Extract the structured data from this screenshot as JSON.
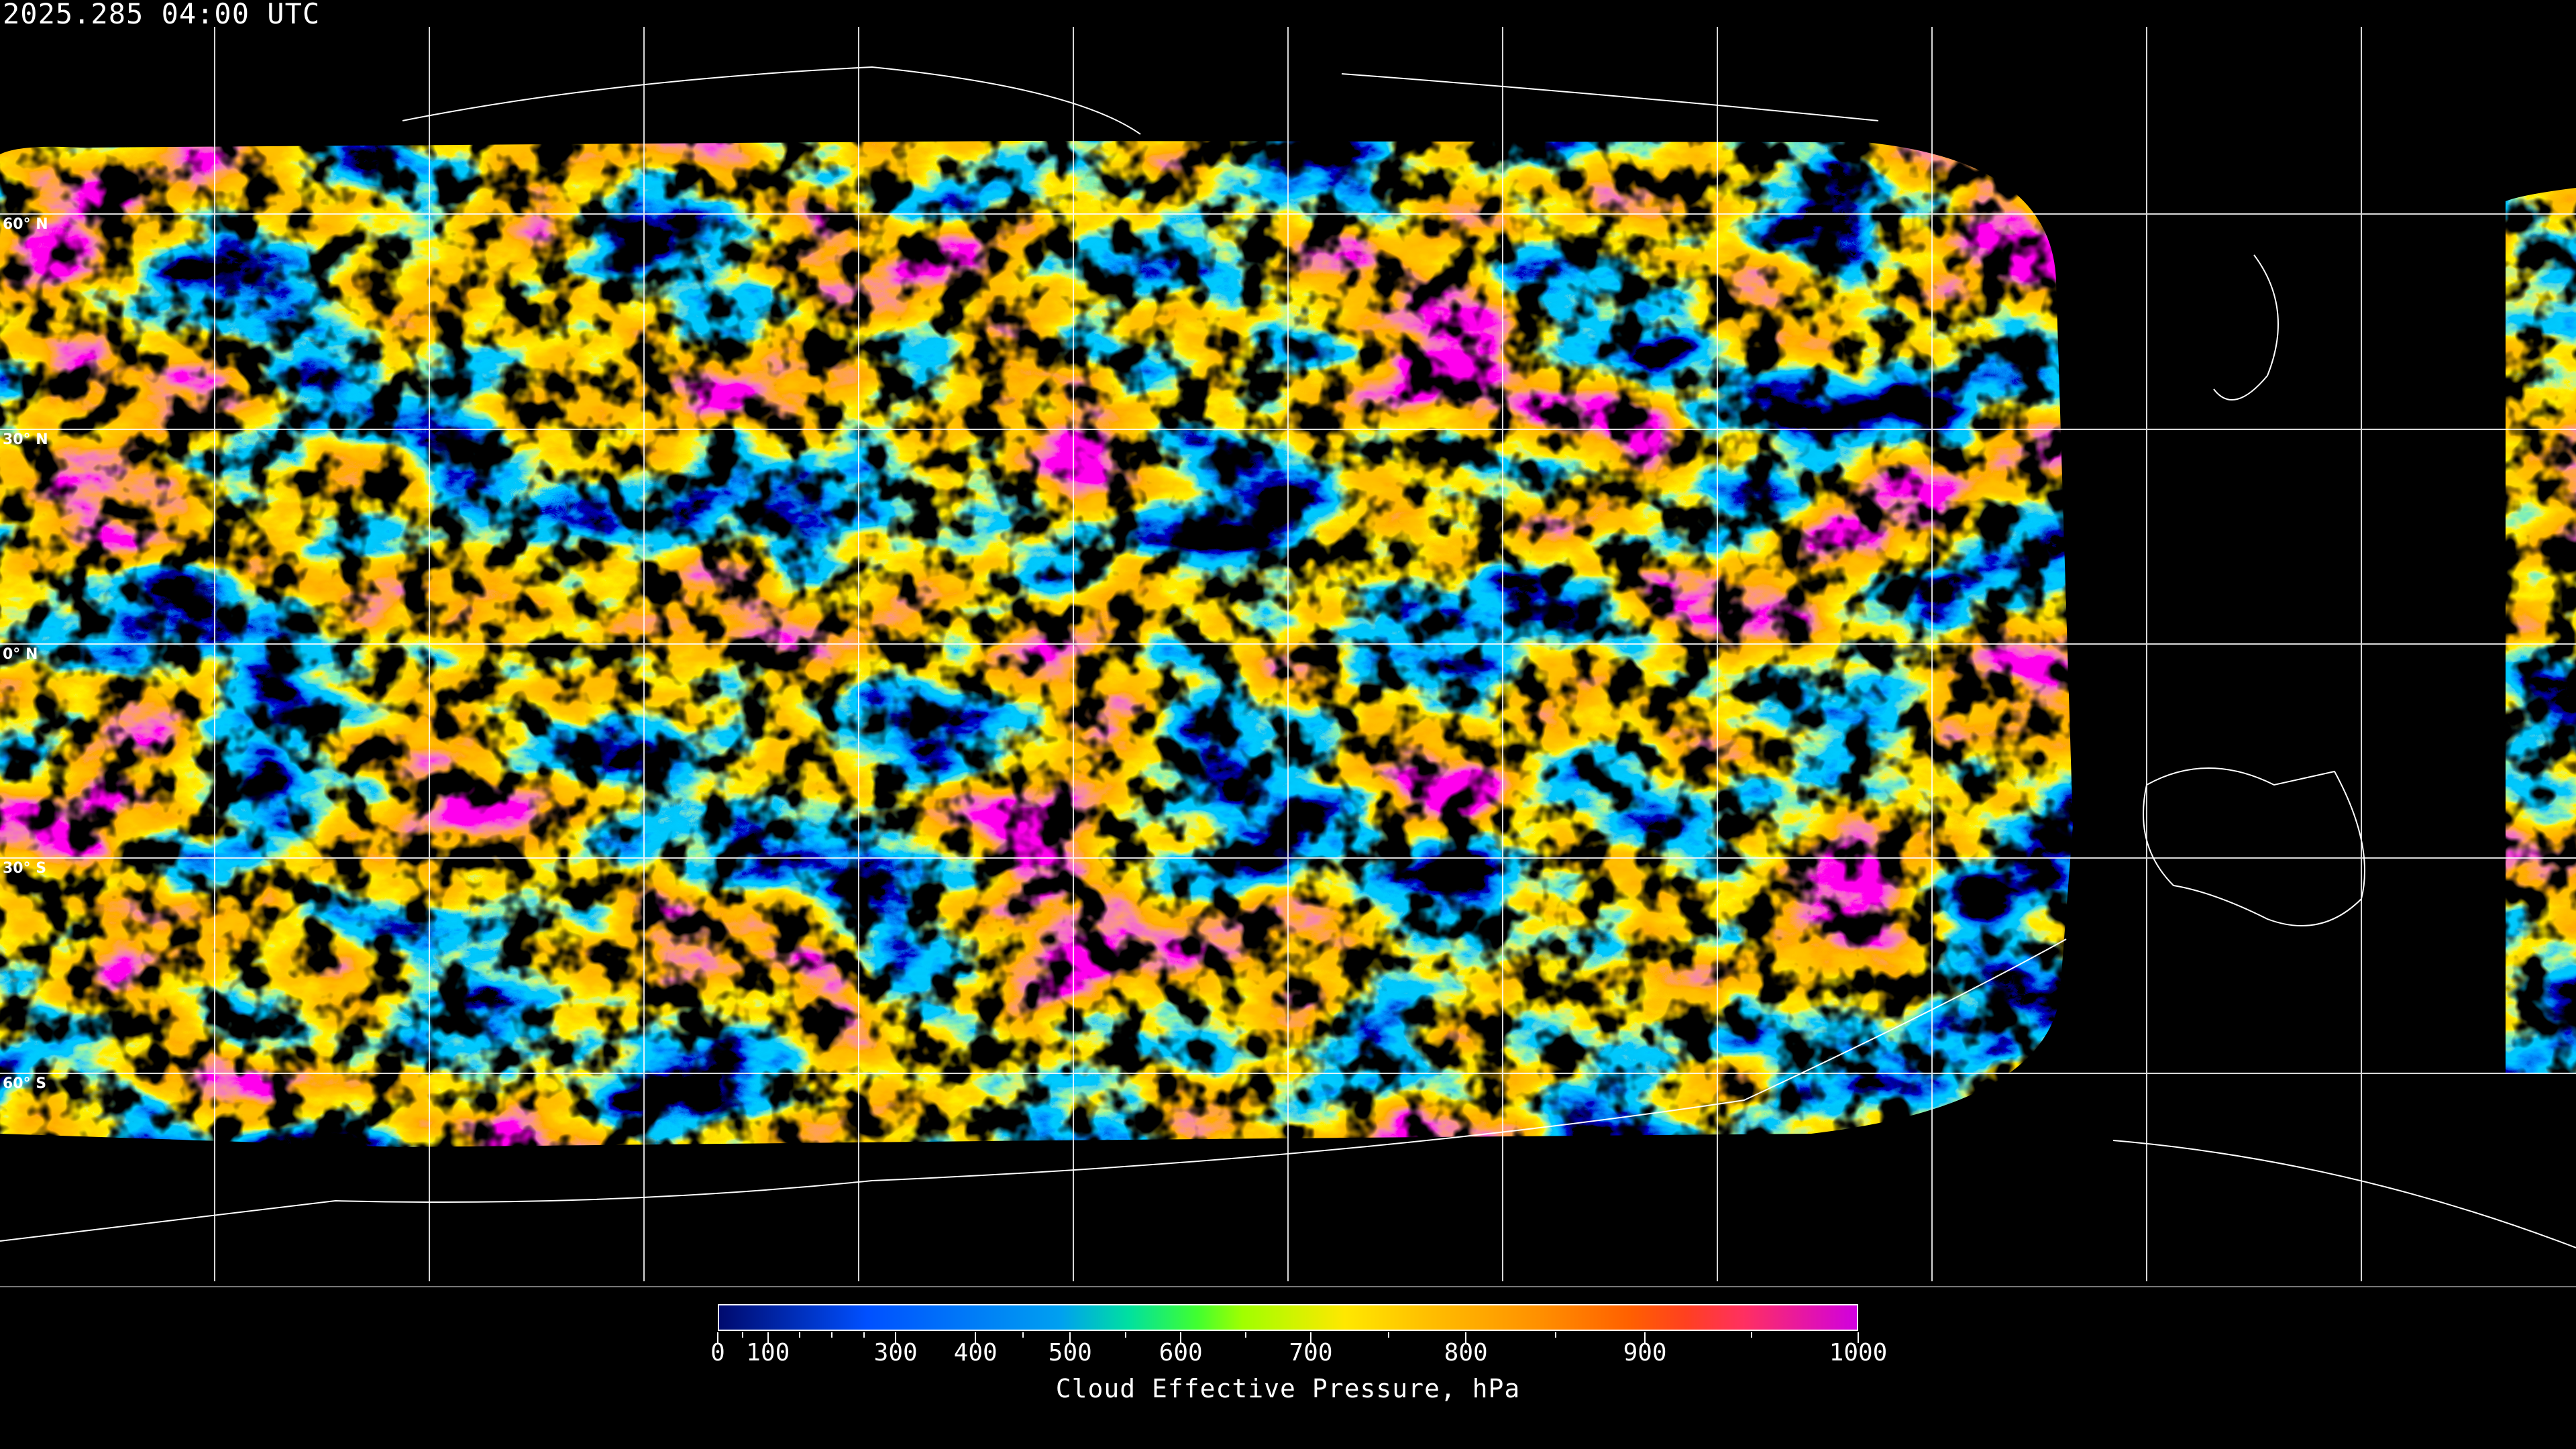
{
  "header": {
    "timestamp": "2025.285 04:00 UTC"
  },
  "map": {
    "projection": "equirectangular",
    "graticule_color": "#ffffff",
    "coastline_color": "#ffffff",
    "latitude_labels": [
      "60° N",
      "30° N",
      "0° N",
      "30° S",
      "60° S"
    ]
  },
  "colorbar": {
    "title": "Cloud Effective Pressure, hPa",
    "range": [
      0,
      1000
    ],
    "major_ticks": [
      "0",
      "100",
      "300",
      "400",
      "500",
      "600",
      "700",
      "800",
      "900",
      "1000"
    ],
    "colors": [
      "#000a6e",
      "#0050ff",
      "#00a0f0",
      "#00e0a0",
      "#40ff30",
      "#a0ff00",
      "#ffe800",
      "#ffc000",
      "#ff9000",
      "#ff6000",
      "#ff4020",
      "#ff3060",
      "#d000e0"
    ]
  }
}
